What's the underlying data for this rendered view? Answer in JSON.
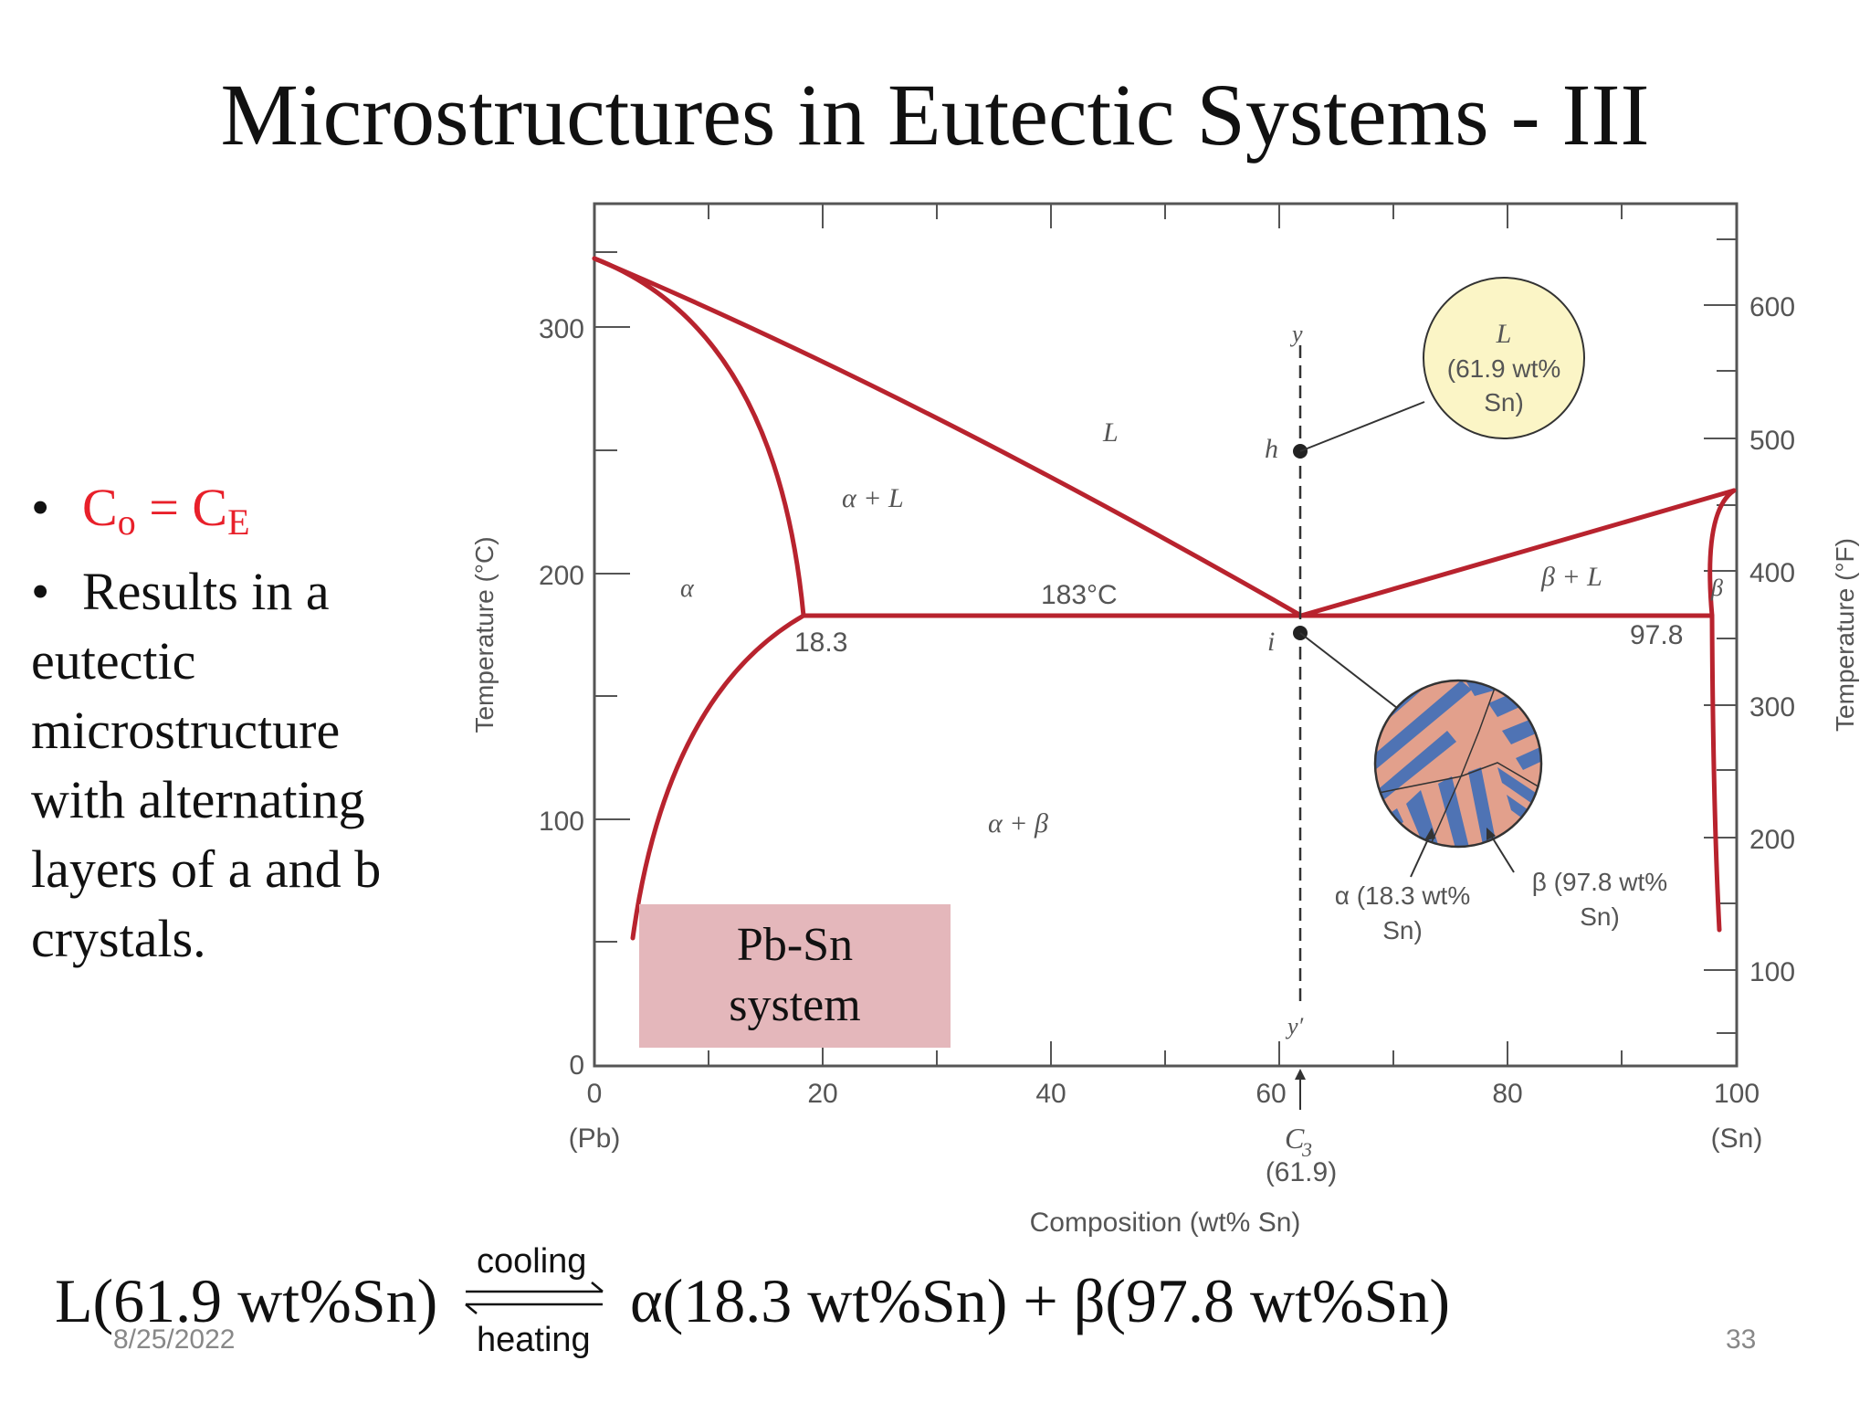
{
  "slide": {
    "title": "Microstructures in Eutectic Systems - III",
    "date": "8/25/2022",
    "page_number": "33"
  },
  "bullets": {
    "item1_c": "C",
    "item1_sub_o": "o",
    "item1_eq": " = C",
    "item1_sub_e": "E",
    "item2_lines": [
      "Results in a",
      "eutectic",
      "microstructure",
      "with alternating",
      "layers of a and b",
      "crystals."
    ],
    "red_color": "#e8202a"
  },
  "label_box": {
    "line1": "Pb-Sn",
    "line2": "system",
    "color": "#e4b7bb"
  },
  "equation": {
    "left": "L(61.9 wt%Sn)",
    "right": "α(18.3 wt%Sn) + β(97.8 wt%Sn)",
    "cooling": "cooling",
    "heating": "heating"
  },
  "diagram": {
    "x_axis_ticks": [
      "0",
      "20",
      "40",
      "60",
      "80",
      "100"
    ],
    "x_axis_sublabels": [
      "(Pb)",
      "(Sn)"
    ],
    "x_axis_label": "Composition (wt% Sn)",
    "c3_label": "C",
    "c3_sub": "3",
    "c3_value": "(61.9)",
    "y_left_ticks": [
      "0",
      "100",
      "200",
      "300"
    ],
    "y_left_label": "Temperature (°C)",
    "y_right_ticks": [
      "100",
      "200",
      "300",
      "400",
      "500",
      "600"
    ],
    "y_right_label": "Temperature (°F)",
    "phase_labels": {
      "L": "L",
      "alpha_L": "α + L",
      "alpha": "α",
      "beta_L": "β + L",
      "beta": "β",
      "alpha_beta": "α + β"
    },
    "eutectic_temp": "183°C",
    "alpha_comp": "18.3",
    "beta_comp": "97.8",
    "points": {
      "h": "h",
      "i": "i",
      "y": "y",
      "y_prime": "y′"
    },
    "callout_liquid": [
      "L",
      "(61.9 wt%",
      "Sn)"
    ],
    "callout_alpha": [
      "α (18.3 wt%",
      "Sn)"
    ],
    "callout_beta": [
      "β (97.8 wt%",
      "Sn)"
    ],
    "line_color": "#b8232e",
    "liquid_bubble_color": "#fbf5c6",
    "alpha_layer_color": "#4f73b4",
    "beta_layer_color": "#e2a08c"
  },
  "chart_data": {
    "type": "phase_diagram",
    "x": {
      "label": "Composition (wt% Sn)",
      "range": [
        0,
        100
      ]
    },
    "y": {
      "label": "Temperature (°C)",
      "range": [
        0,
        327
      ]
    },
    "eutectic": {
      "temperature_C": 183,
      "composition": 61.9,
      "alpha_limit": 18.3,
      "beta_limit": 97.8
    },
    "melting_points_C": {
      "Pb": 327,
      "Sn": 232
    },
    "overall_composition_C3": 61.9
  }
}
